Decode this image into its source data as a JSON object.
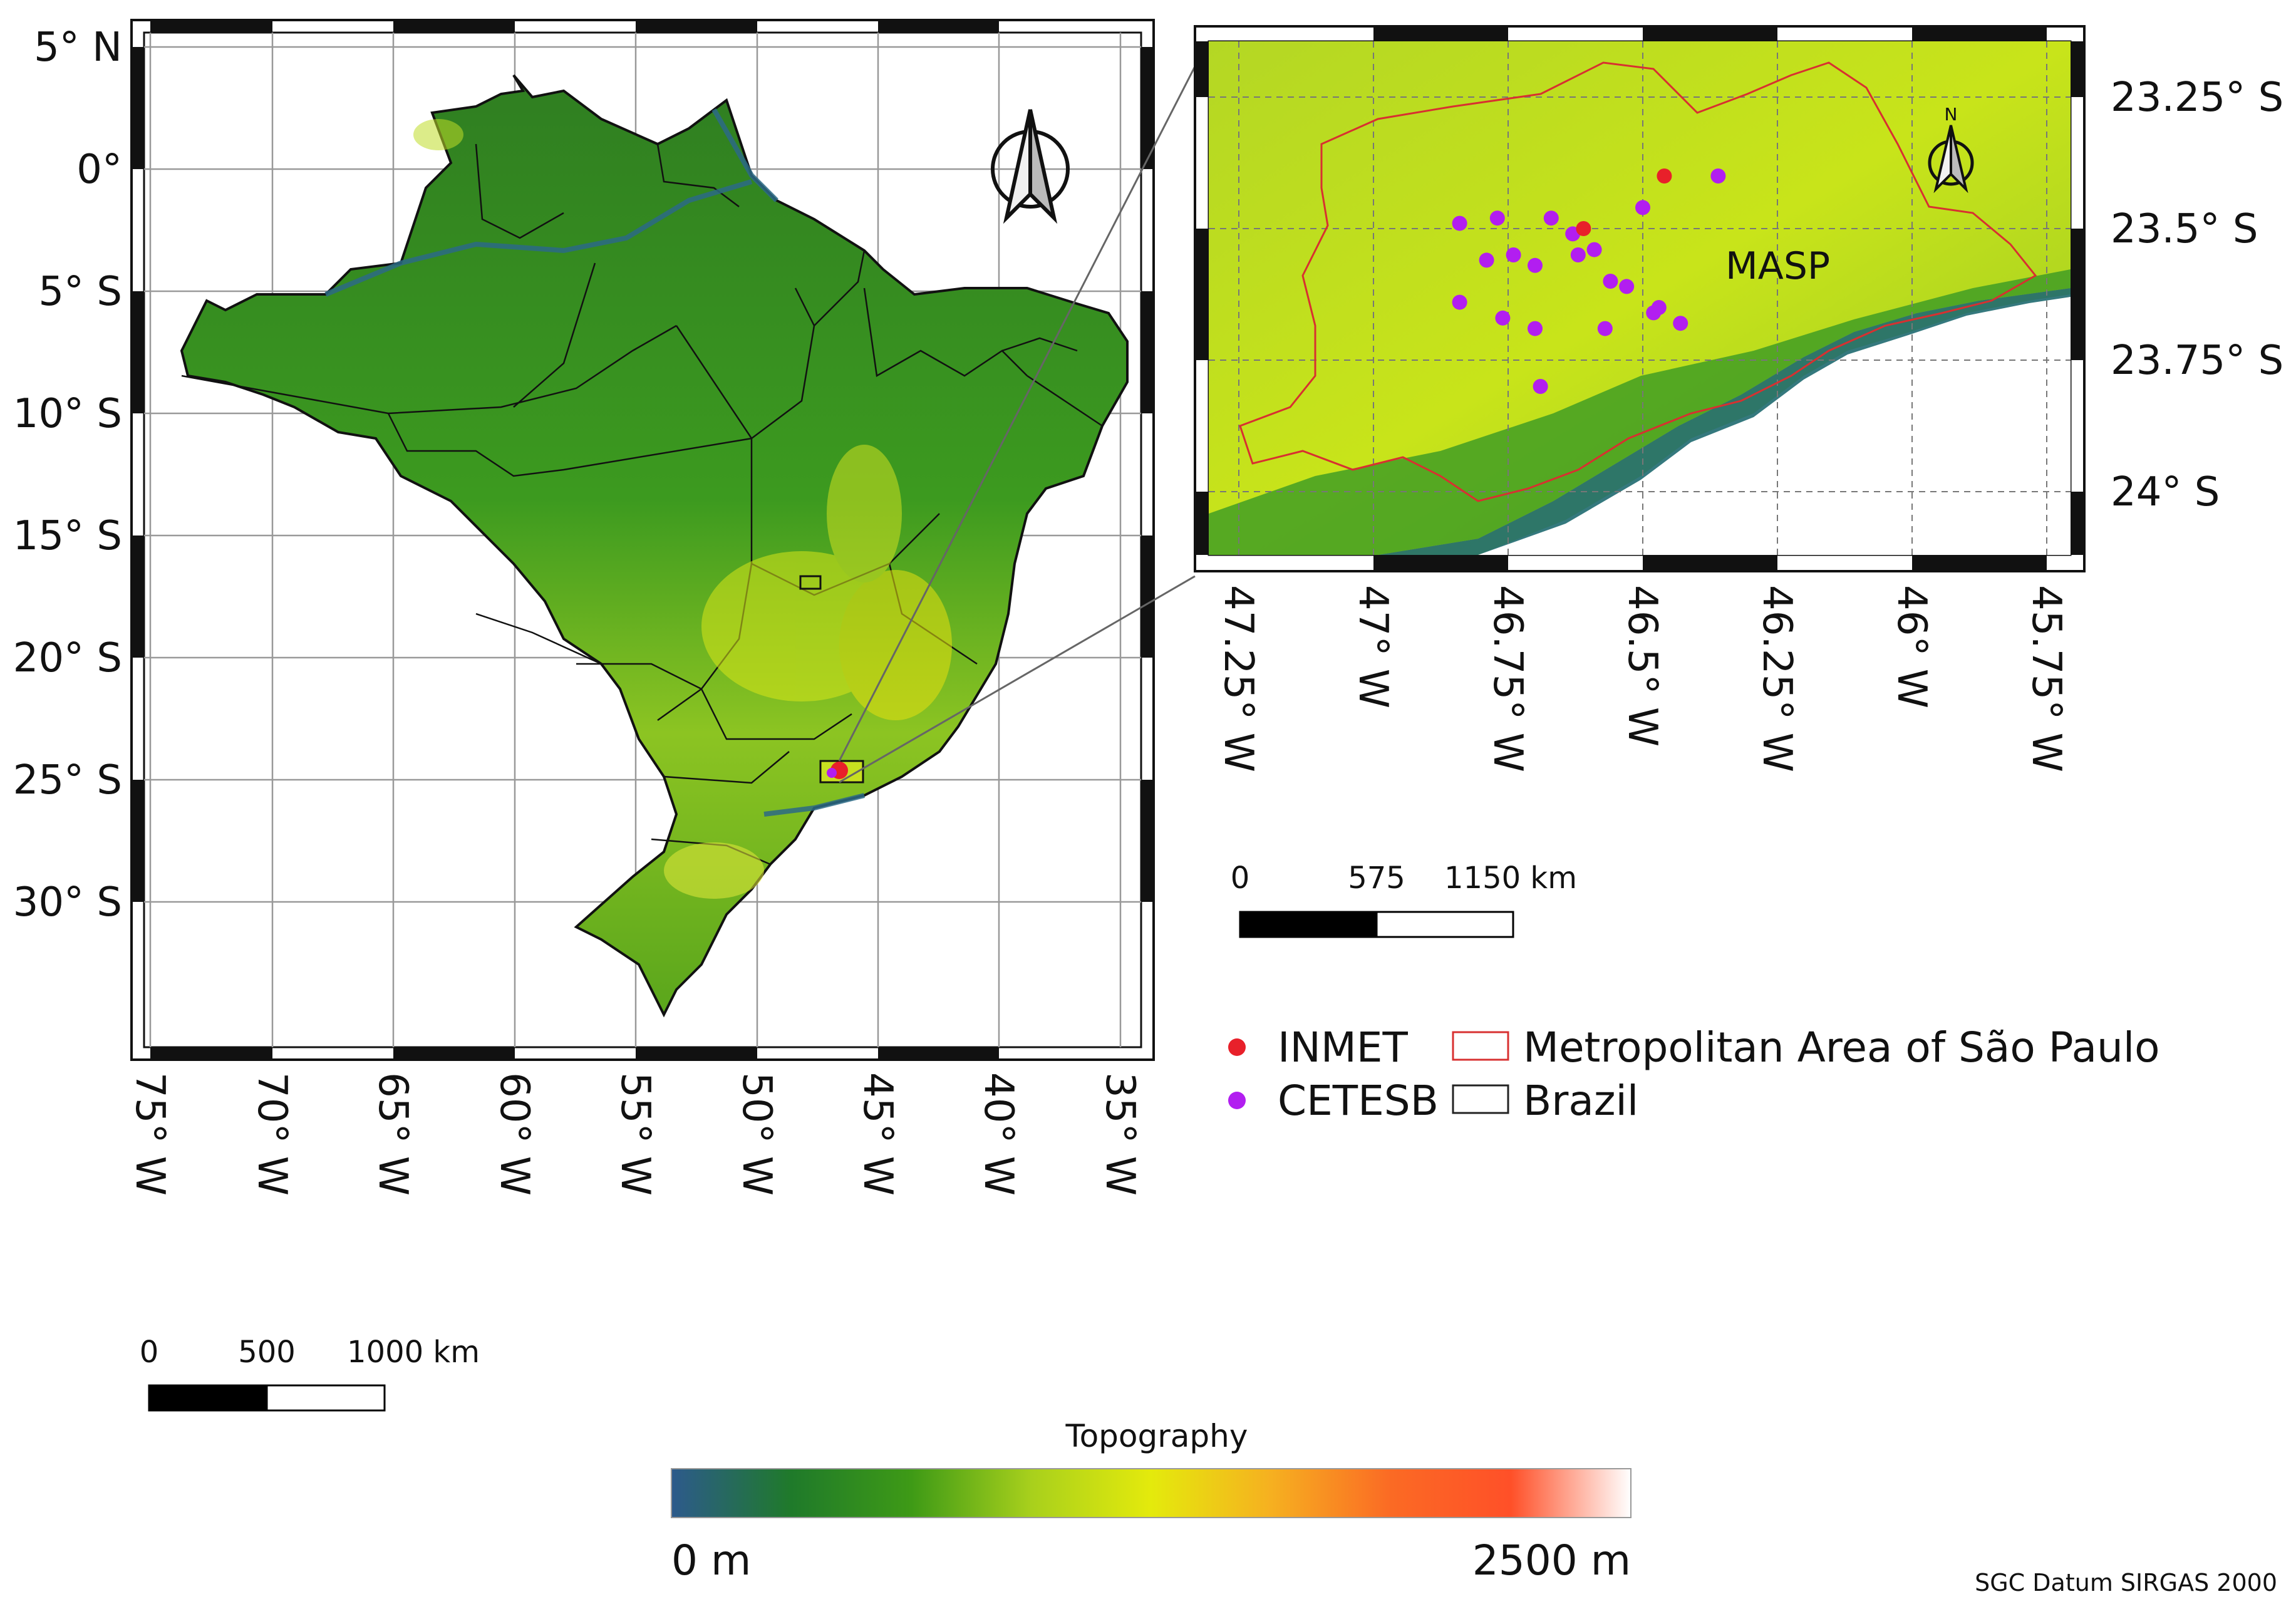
{
  "main_map": {
    "lat_labels": [
      "5° N",
      "0°",
      "5° S",
      "10° S",
      "15° S",
      "20° S",
      "25° S",
      "30° S"
    ],
    "lon_labels": [
      "75° W",
      "70° W",
      "65° W",
      "60° W",
      "55° W",
      "50° W",
      "45° W",
      "40° W",
      "35° W"
    ],
    "north_arrow_icon": "north-arrow-icon",
    "scale": {
      "labels": [
        "0",
        "500",
        "1000 km"
      ]
    }
  },
  "inset_map": {
    "region_label": "MASP",
    "north_label": "N",
    "lat_labels": [
      "23.25° S",
      "23.5° S",
      "23.75° S",
      "24° S"
    ],
    "lon_labels": [
      "47.25° W",
      "47° W",
      "46.75° W",
      "46.5° W",
      "46.25° W",
      "46° W",
      "45.75° W"
    ],
    "scale": {
      "labels": [
        "0",
        "575",
        "1150 km"
      ]
    },
    "stations": {
      "inmet": [
        [
          46.61,
          23.5
        ],
        [
          46.46,
          23.4
        ]
      ],
      "cetesb": [
        [
          46.84,
          23.49
        ],
        [
          46.77,
          23.48
        ],
        [
          46.67,
          23.48
        ],
        [
          46.5,
          23.46
        ],
        [
          46.36,
          23.4
        ],
        [
          46.63,
          23.51
        ],
        [
          46.74,
          23.55
        ],
        [
          46.79,
          23.56
        ],
        [
          46.7,
          23.57
        ],
        [
          46.59,
          23.54
        ],
        [
          46.62,
          23.55
        ],
        [
          46.56,
          23.6
        ],
        [
          46.53,
          23.61
        ],
        [
          46.84,
          23.64
        ],
        [
          46.76,
          23.67
        ],
        [
          46.7,
          23.69
        ],
        [
          46.57,
          23.69
        ],
        [
          46.47,
          23.65
        ],
        [
          46.43,
          23.68
        ],
        [
          46.69,
          23.8
        ],
        [
          46.48,
          23.66
        ]
      ]
    }
  },
  "legend": {
    "items": [
      {
        "label": "INMET",
        "color": "#e8202a"
      },
      {
        "label": "CETESB",
        "color": "#b21ef0"
      },
      {
        "label": "Metropolitan Area of São Paulo",
        "color": "#d83030"
      },
      {
        "label": "Brazil",
        "color": "#222222"
      }
    ]
  },
  "colorbar": {
    "title": "Topography",
    "min_label": "0 m",
    "max_label": "2500 m",
    "colors": [
      "#2d5a8c",
      "#1f7a2a",
      "#3e9a16",
      "#a8d01c",
      "#e4ea0c",
      "#f6b020",
      "#fb6a24",
      "#ff5028",
      "#ffffff"
    ]
  },
  "footer": {
    "datum": "SGC Datum SIRGAS 2000"
  }
}
